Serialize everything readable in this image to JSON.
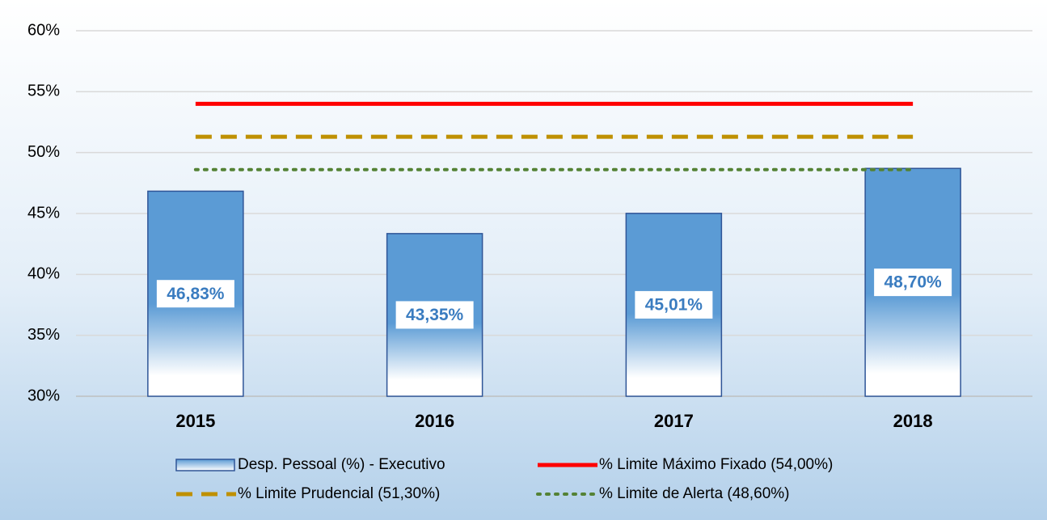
{
  "chart_data": {
    "type": "bar",
    "categories": [
      "2015",
      "2016",
      "2017",
      "2018"
    ],
    "series": [
      {
        "name": "Desp. Pessoal (%) - Executivo",
        "type": "bar",
        "color": "#5b9bd5",
        "values": [
          46.83,
          43.35,
          45.01,
          48.7
        ],
        "value_labels": [
          "46,83%",
          "43,35%",
          "45,01%",
          "48,70%"
        ]
      },
      {
        "name": "% Limite Máximo Fixado (54,00%)",
        "type": "line",
        "color": "#ff0000",
        "line_style": "solid",
        "values": [
          54,
          54,
          54,
          54
        ]
      },
      {
        "name": "% Limite Prudencial (51,30%)",
        "type": "line",
        "color": "#bf9000",
        "line_style": "dashed",
        "values": [
          51.3,
          51.3,
          51.3,
          51.3
        ]
      },
      {
        "name": "% Limite de Alerta (48,60%)",
        "type": "line",
        "color": "#548235",
        "line_style": "dotted",
        "values": [
          48.6,
          48.6,
          48.6,
          48.6
        ]
      }
    ],
    "ylim": [
      30,
      60
    ],
    "yticks": [
      {
        "value": 30,
        "label": "30%"
      },
      {
        "value": 35,
        "label": "35%"
      },
      {
        "value": 40,
        "label": "40%"
      },
      {
        "value": 45,
        "label": "45%"
      },
      {
        "value": 50,
        "label": "50%"
      },
      {
        "value": 55,
        "label": "55%"
      },
      {
        "value": 60,
        "label": "60%"
      }
    ],
    "grid": true,
    "legend": "bottom"
  }
}
